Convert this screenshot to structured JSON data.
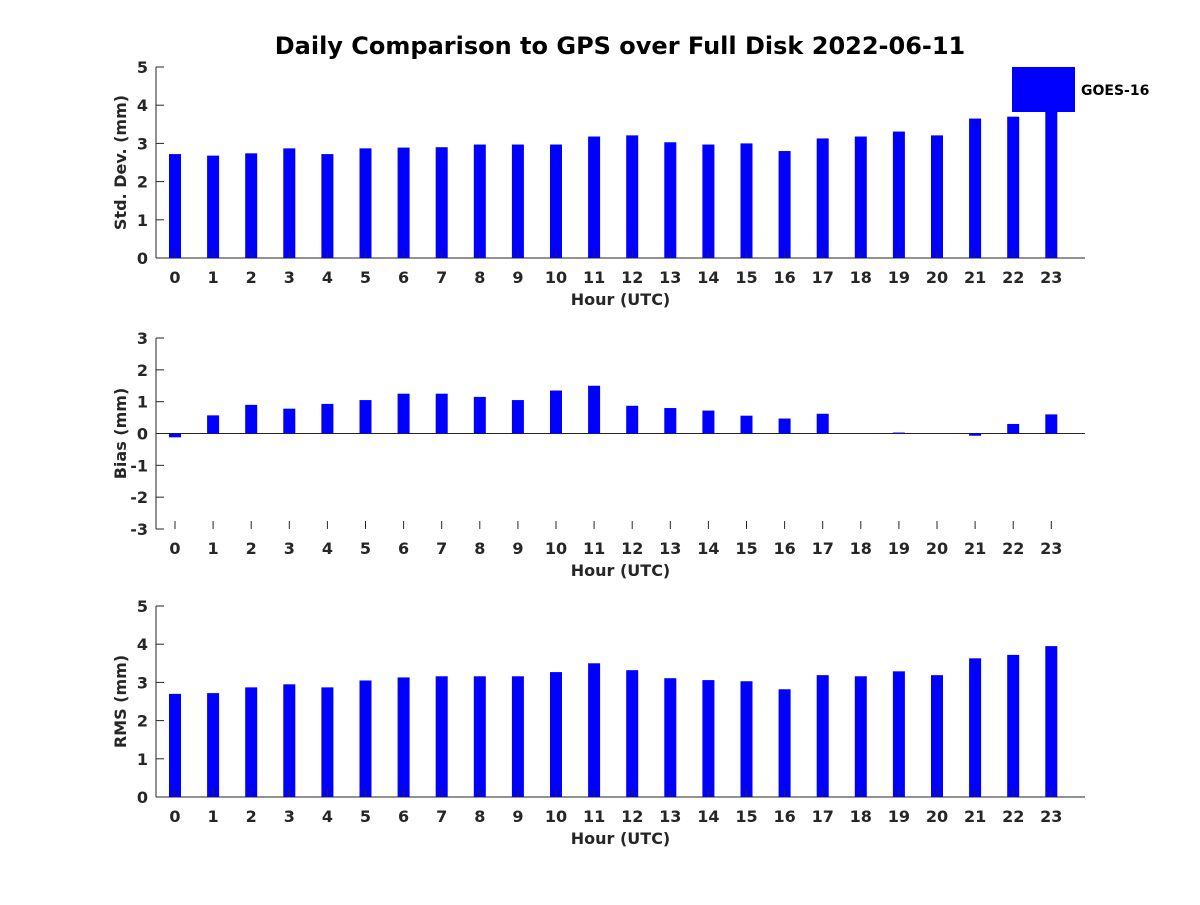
{
  "title": "Daily Comparison to GPS over Full Disk 2022-06-11",
  "bar_color": "#0000ff",
  "legend": {
    "label": "GOES-16"
  },
  "chart_data": [
    {
      "type": "bar",
      "title": "Daily Comparison to GPS over Full Disk 2022-06-11",
      "xlabel": "Hour (UTC)",
      "ylabel": "Std. Dev. (mm)",
      "ylim": [
        0,
        5
      ],
      "yticks": [
        0,
        1,
        2,
        3,
        4,
        5
      ],
      "categories": [
        "0",
        "1",
        "2",
        "3",
        "4",
        "5",
        "6",
        "7",
        "8",
        "9",
        "10",
        "11",
        "12",
        "13",
        "14",
        "15",
        "16",
        "17",
        "18",
        "19",
        "20",
        "21",
        "22",
        "23"
      ],
      "series": [
        {
          "name": "GOES-16",
          "values": [
            2.72,
            2.68,
            2.74,
            2.87,
            2.72,
            2.87,
            2.89,
            2.9,
            2.97,
            2.97,
            2.97,
            3.18,
            3.21,
            3.03,
            2.97,
            3.0,
            2.8,
            3.13,
            3.18,
            3.31,
            3.21,
            3.65,
            3.7,
            3.95
          ]
        }
      ]
    },
    {
      "type": "bar",
      "xlabel": "Hour (UTC)",
      "ylabel": "Bias (mm)",
      "ylim": [
        -3,
        3
      ],
      "yticks": [
        -3,
        -2,
        -1,
        0,
        1,
        2,
        3
      ],
      "categories": [
        "0",
        "1",
        "2",
        "3",
        "4",
        "5",
        "6",
        "7",
        "8",
        "9",
        "10",
        "11",
        "12",
        "13",
        "14",
        "15",
        "16",
        "17",
        "18",
        "19",
        "20",
        "21",
        "22",
        "23"
      ],
      "series": [
        {
          "name": "GOES-16",
          "values": [
            -0.12,
            0.57,
            0.9,
            0.78,
            0.93,
            1.05,
            1.25,
            1.25,
            1.15,
            1.05,
            1.35,
            1.5,
            0.87,
            0.8,
            0.72,
            0.56,
            0.47,
            0.62,
            0.0,
            0.03,
            0.0,
            -0.07,
            0.3,
            0.6
          ]
        }
      ]
    },
    {
      "type": "bar",
      "xlabel": "Hour (UTC)",
      "ylabel": "RMS (mm)",
      "ylim": [
        0,
        5
      ],
      "yticks": [
        0,
        1,
        2,
        3,
        4,
        5
      ],
      "categories": [
        "0",
        "1",
        "2",
        "3",
        "4",
        "5",
        "6",
        "7",
        "8",
        "9",
        "10",
        "11",
        "12",
        "13",
        "14",
        "15",
        "16",
        "17",
        "18",
        "19",
        "20",
        "21",
        "22",
        "23"
      ],
      "series": [
        {
          "name": "GOES-16",
          "values": [
            2.7,
            2.72,
            2.87,
            2.95,
            2.87,
            3.05,
            3.13,
            3.16,
            3.16,
            3.16,
            3.27,
            3.5,
            3.32,
            3.11,
            3.06,
            3.03,
            2.82,
            3.19,
            3.16,
            3.29,
            3.19,
            3.63,
            3.72,
            3.95
          ]
        }
      ]
    }
  ]
}
